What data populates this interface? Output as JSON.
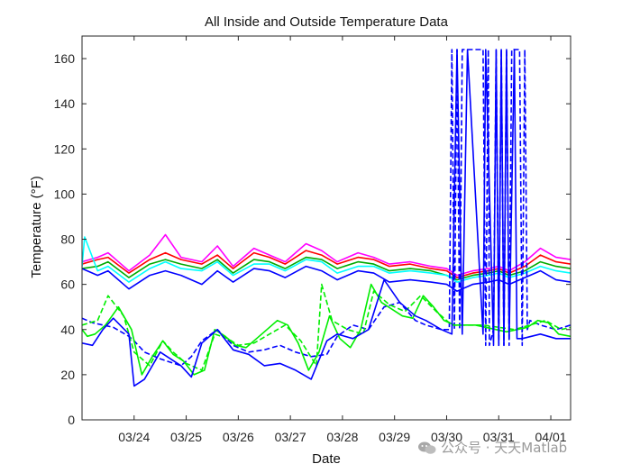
{
  "chart_data": {
    "type": "line",
    "title": "All Inside and Outside Temperature Data",
    "xlabel": "Date",
    "ylabel": "Temperature (°F)",
    "xlim": [
      "03/23 00:00",
      "04/01 09:00"
    ],
    "ylim": [
      0,
      170
    ],
    "xticks": [
      "03/24",
      "03/25",
      "03/26",
      "03/27",
      "03/28",
      "03/29",
      "03/30",
      "03/31",
      "04/01"
    ],
    "yticks": [
      0,
      20,
      40,
      60,
      80,
      100,
      120,
      140,
      160
    ],
    "grid": false,
    "legend": "none",
    "x_unit": "day of month (March 23 – April 1)",
    "series": [
      {
        "color": "#ff00ff",
        "style": "solid",
        "x": [
          23.0,
          23.3,
          23.5,
          23.9,
          24.3,
          24.6,
          24.9,
          25.3,
          25.6,
          25.9,
          26.3,
          26.6,
          26.9,
          27.3,
          27.6,
          27.9,
          28.3,
          28.6,
          28.9,
          29.3,
          29.7,
          30.0,
          30.2,
          30.5,
          30.8,
          31.0,
          31.2,
          31.5,
          31.8,
          32.1,
          32.38
        ],
        "y": [
          70,
          72,
          74,
          66,
          73,
          82,
          72,
          70,
          77,
          68,
          76,
          73,
          70,
          78,
          75,
          70,
          74,
          72,
          69,
          70,
          68,
          67,
          64,
          66,
          67,
          68,
          66,
          70,
          76,
          72,
          71
        ]
      },
      {
        "color": "#ff0000",
        "style": "solid",
        "x": [
          23.0,
          23.3,
          23.5,
          23.9,
          24.3,
          24.6,
          24.9,
          25.3,
          25.6,
          25.9,
          26.3,
          26.6,
          26.9,
          27.3,
          27.6,
          27.9,
          28.3,
          28.6,
          28.9,
          29.3,
          29.7,
          30.0,
          30.2,
          30.5,
          30.8,
          31.0,
          31.2,
          31.5,
          31.8,
          32.1,
          32.38
        ],
        "y": [
          69,
          71,
          72,
          65,
          71,
          74,
          71,
          69,
          73,
          67,
          74,
          72,
          69,
          75,
          73,
          69,
          72,
          71,
          68,
          69,
          67,
          66,
          63,
          65,
          66,
          67,
          65,
          68,
          73,
          70,
          69
        ]
      },
      {
        "color": "#00aa00",
        "style": "solid",
        "x": [
          23.0,
          23.3,
          23.5,
          23.9,
          24.3,
          24.6,
          24.9,
          25.3,
          25.6,
          25.9,
          26.3,
          26.6,
          26.9,
          27.3,
          27.6,
          27.9,
          28.3,
          28.6,
          28.9,
          29.3,
          29.7,
          30.0,
          30.2,
          30.5,
          30.8,
          31.0,
          31.2,
          31.5,
          31.8,
          32.1,
          32.38
        ],
        "y": [
          67,
          68,
          70,
          63,
          69,
          71,
          69,
          67,
          71,
          65,
          71,
          70,
          67,
          72,
          71,
          67,
          70,
          69,
          66,
          67,
          66,
          64,
          62,
          64,
          65,
          66,
          64,
          66,
          70,
          68,
          67
        ]
      },
      {
        "color": "#00ffff",
        "style": "solid",
        "x": [
          23.0,
          23.05,
          23.3,
          23.5,
          23.9,
          24.3,
          24.6,
          24.9,
          25.3,
          25.6,
          25.9,
          26.3,
          26.6,
          26.9,
          27.3,
          27.6,
          27.9,
          28.3,
          28.6,
          28.9,
          29.3,
          29.7,
          30.0,
          30.2,
          30.5,
          30.8,
          31.0,
          31.2,
          31.5,
          31.8,
          32.1,
          32.38
        ],
        "y": [
          68,
          81,
          66,
          68,
          61,
          67,
          70,
          67,
          66,
          70,
          64,
          69,
          69,
          66,
          71,
          70,
          65,
          68,
          68,
          65,
          66,
          65,
          64,
          61,
          63,
          64,
          65,
          63,
          65,
          68,
          66,
          65
        ]
      },
      {
        "color": "#0000ff",
        "style": "solid",
        "x": [
          23.0,
          23.3,
          23.5,
          23.9,
          24.3,
          24.6,
          24.9,
          25.3,
          25.6,
          25.9,
          26.3,
          26.6,
          26.9,
          27.3,
          27.6,
          27.9,
          28.3,
          28.6,
          28.9,
          29.3,
          29.7,
          30.0,
          30.2,
          30.5,
          30.8,
          31.0,
          31.2,
          31.5,
          31.8,
          32.1,
          32.38
        ],
        "y": [
          67,
          64,
          66,
          58,
          64,
          66,
          64,
          60,
          66,
          61,
          67,
          66,
          63,
          68,
          66,
          62,
          66,
          65,
          61,
          62,
          61,
          60,
          57,
          60,
          61,
          62,
          60,
          63,
          66,
          62,
          61
        ]
      },
      {
        "color": "#0000ff",
        "style": "dashed",
        "x": [
          23.0,
          23.2,
          23.4,
          23.6,
          23.9,
          24.0,
          24.2,
          24.5,
          24.9,
          25.1,
          25.3,
          25.6,
          25.9,
          26.2,
          26.5,
          26.8,
          27.1,
          27.4,
          27.7,
          27.9,
          28.2,
          28.5,
          28.8,
          29.1,
          29.4,
          29.6,
          29.9,
          30.05,
          30.1,
          30.15,
          30.2,
          30.25,
          30.3,
          30.65,
          30.7,
          30.75,
          30.8,
          30.82,
          30.9,
          30.95,
          31.0,
          31.05,
          31.1,
          31.15,
          31.2,
          31.25,
          31.3,
          31.4,
          31.45,
          31.5,
          31.55,
          31.6,
          31.8,
          32.1,
          32.38
        ],
        "y": [
          45,
          43,
          42,
          41,
          37,
          35,
          30,
          27,
          24,
          28,
          35,
          40,
          33,
          30,
          31,
          33,
          30,
          28,
          29,
          37,
          42,
          40,
          50,
          52,
          44,
          42,
          40,
          40,
          164,
          40,
          164,
          40,
          164,
          164,
          164,
          33,
          164,
          33,
          40,
          164,
          33,
          164,
          33,
          164,
          33,
          164,
          164,
          164,
          33,
          164,
          40,
          44,
          42,
          40,
          42
        ]
      },
      {
        "color": "#00ee00",
        "style": "solid",
        "x": [
          23.0,
          23.1,
          23.25,
          23.45,
          23.7,
          23.95,
          24.15,
          24.35,
          24.55,
          24.75,
          24.95,
          25.15,
          25.35,
          25.55,
          25.75,
          25.95,
          26.15,
          26.35,
          26.55,
          26.75,
          26.95,
          27.15,
          27.35,
          27.55,
          27.75,
          27.95,
          28.15,
          28.35,
          28.55,
          28.75,
          28.95,
          29.15,
          29.35,
          29.55,
          29.75,
          29.95,
          30.15,
          30.35,
          30.55,
          30.75,
          30.95,
          31.15,
          31.35,
          31.55,
          31.75,
          31.95,
          32.15,
          32.38
        ],
        "y": [
          40,
          37,
          38,
          42,
          50,
          40,
          20,
          28,
          35,
          29,
          26,
          20,
          22,
          40,
          37,
          33,
          32,
          36,
          40,
          44,
          42,
          34,
          22,
          30,
          46,
          36,
          32,
          40,
          60,
          52,
          49,
          46,
          45,
          55,
          50,
          44,
          42,
          42,
          42,
          41,
          40,
          39,
          40,
          41,
          44,
          43,
          38,
          37
        ]
      },
      {
        "color": "#00ee00",
        "style": "dashed",
        "x": [
          23.0,
          23.3,
          23.5,
          23.8,
          24.0,
          24.3,
          24.55,
          24.75,
          25.0,
          25.3,
          25.55,
          25.8,
          26.0,
          26.3,
          26.6,
          26.9,
          27.2,
          27.5,
          27.6,
          27.8,
          28.1,
          28.4,
          28.6,
          28.9,
          29.2,
          29.5,
          29.8,
          30.1,
          30.4,
          30.7,
          31.0,
          31.3,
          31.6,
          31.9,
          32.2,
          32.38
        ],
        "y": [
          42,
          44,
          55,
          46,
          30,
          24,
          35,
          30,
          25,
          22,
          38,
          36,
          33,
          34,
          38,
          42,
          35,
          24,
          60,
          44,
          40,
          38,
          57,
          51,
          48,
          55,
          48,
          42,
          42,
          42,
          41,
          40,
          42,
          44,
          40,
          41
        ]
      },
      {
        "color": "#0000ff",
        "style": "solid",
        "x": [
          23.0,
          23.2,
          23.4,
          23.6,
          23.9,
          24.0,
          24.2,
          24.5,
          24.9,
          25.1,
          25.3,
          25.6,
          25.9,
          26.2,
          26.5,
          26.8,
          27.1,
          27.4,
          27.7,
          27.9,
          28.2,
          28.5,
          28.8,
          29.1,
          29.4,
          29.6,
          29.9,
          30.1,
          30.2,
          30.3,
          30.4,
          30.7,
          30.75,
          30.9,
          30.95,
          31.0,
          31.05,
          31.1,
          31.15,
          31.2,
          31.3,
          31.35,
          31.45,
          31.8,
          32.1,
          32.38
        ],
        "y": [
          34,
          33,
          40,
          45,
          38,
          15,
          18,
          30,
          24,
          19,
          34,
          40,
          31,
          29,
          24,
          25,
          22,
          18,
          35,
          38,
          36,
          40,
          62,
          52,
          46,
          44,
          40,
          38,
          164,
          38,
          164,
          38,
          164,
          33,
          164,
          33,
          164,
          33,
          164,
          36,
          164,
          36,
          36,
          38,
          36,
          36
        ]
      }
    ]
  },
  "watermark": {
    "text": "公众号 · 天天Matlab",
    "icon": "wechat-bubble-icon"
  }
}
